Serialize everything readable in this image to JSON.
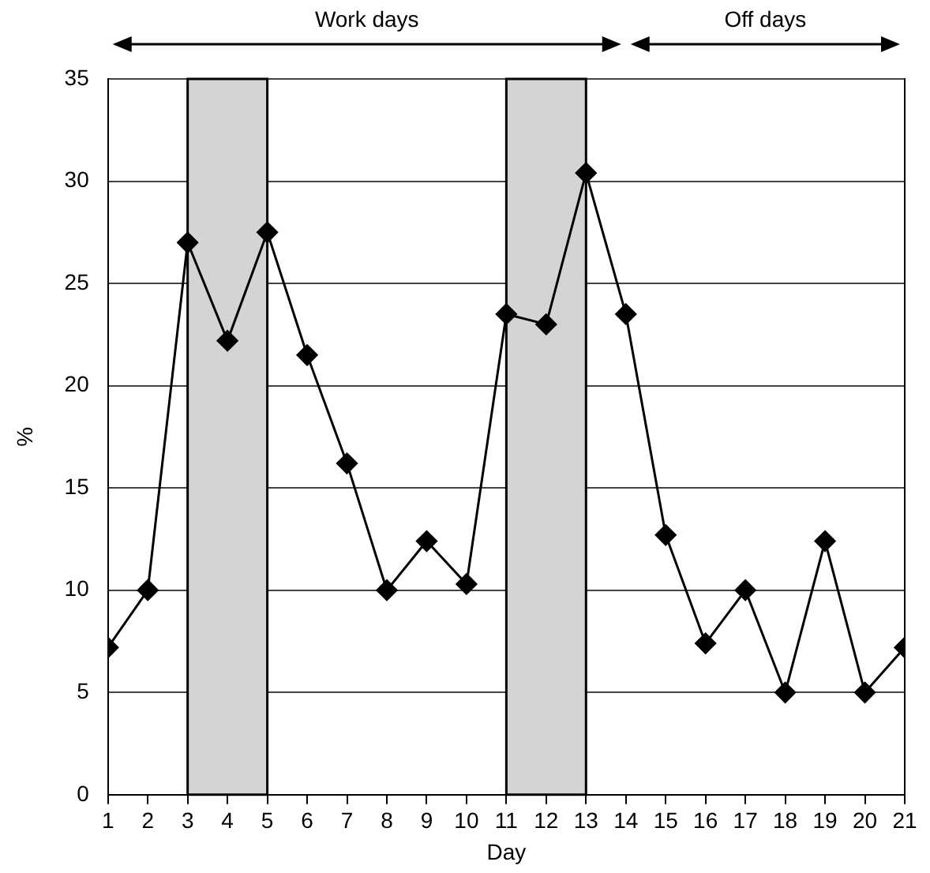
{
  "chart_data": {
    "type": "line",
    "xlabel": "Day",
    "ylabel": "%",
    "x": [
      1,
      2,
      3,
      4,
      5,
      6,
      7,
      8,
      9,
      10,
      11,
      12,
      13,
      14,
      15,
      16,
      17,
      18,
      19,
      20,
      21
    ],
    "series": [
      {
        "color": "#000000",
        "values": [
          7.2,
          10,
          27,
          22.2,
          27.5,
          21.5,
          16.2,
          10,
          12.4,
          10.3,
          23.5,
          23,
          30.4,
          23.5,
          12.7,
          7.4,
          10,
          5,
          12.4,
          5,
          7.2
        ]
      }
    ],
    "xlim": [
      1,
      21
    ],
    "xticks": [
      1,
      2,
      3,
      4,
      5,
      6,
      7,
      8,
      9,
      10,
      11,
      12,
      13,
      14,
      15,
      16,
      17,
      18,
      19,
      20,
      21
    ],
    "ylim": [
      0,
      35
    ],
    "yticks": [
      0,
      5,
      10,
      15,
      20,
      25,
      30,
      35
    ],
    "bands": [
      {
        "axis": "x",
        "from": 3,
        "to": 5,
        "color": "#d4d4d4"
      },
      {
        "axis": "x",
        "from": 11,
        "to": 13,
        "color": "#d4d4d4"
      }
    ],
    "annotations": [
      "Work days",
      "Off days"
    ],
    "grid": "y",
    "legend": false,
    "marker": "diamond",
    "line_style": "solid"
  }
}
